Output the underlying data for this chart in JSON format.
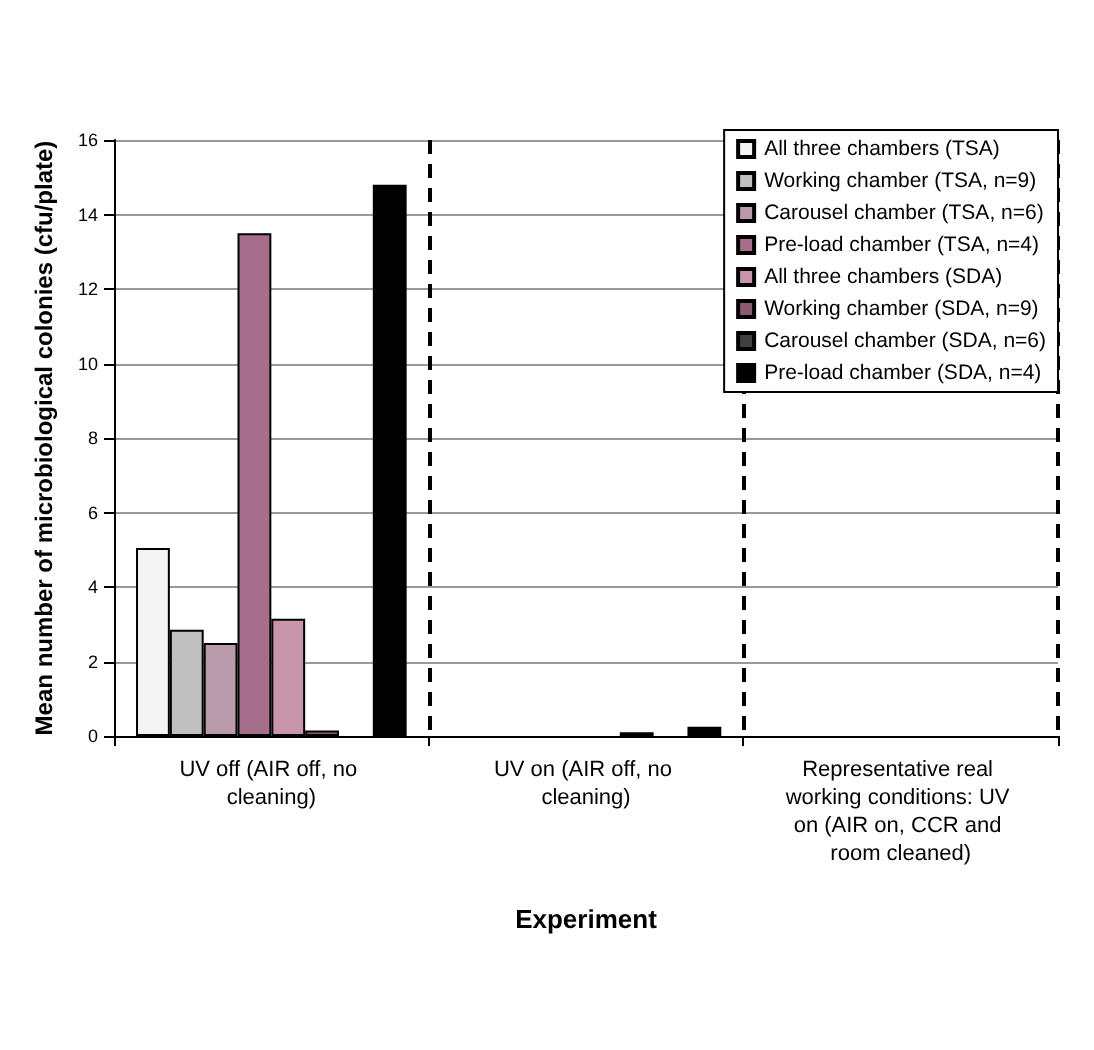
{
  "chart_data": {
    "type": "bar",
    "xlabel": "Experiment",
    "ylabel": "Mean number of microbiological colonies (cfu/plate)",
    "categories": [
      "UV off (AIR off, no cleaning)",
      "UV on (AIR off, no cleaning)",
      "Representative real working conditions: UV on (AIR on, CCR and room cleaned)"
    ],
    "series": [
      {
        "name": "All three chambers (TSA)",
        "color": "#f4f4f4",
        "values": [
          5.05,
          null,
          null
        ]
      },
      {
        "name": "Working chamber (TSA, n=9)",
        "color": "#c0c0c0",
        "values": [
          2.85,
          null,
          null
        ]
      },
      {
        "name": "Carousel chamber (TSA, n=6)",
        "color": "#b89aab",
        "values": [
          2.5,
          null,
          null
        ]
      },
      {
        "name": "Pre-load chamber (TSA, n=4)",
        "color": "#a66e8a",
        "values": [
          13.5,
          null,
          null
        ]
      },
      {
        "name": "All three chambers (SDA)",
        "color": "#c895ad",
        "values": [
          3.15,
          null,
          null
        ]
      },
      {
        "name": "Working chamber (SDA, n=9)",
        "color": "#8a5a70",
        "values": [
          0.15,
          0.1,
          null
        ]
      },
      {
        "name": "Carousel chamber (SDA, n=6)",
        "color": "#404040",
        "values": [
          null,
          null,
          null
        ]
      },
      {
        "name": "Pre-load chamber (SDA, n=4)",
        "color": "#000000",
        "values": [
          14.8,
          0.25,
          null
        ]
      }
    ],
    "ylim": [
      0,
      16
    ],
    "yticks": [
      0,
      2,
      4,
      6,
      8,
      10,
      12,
      14,
      16
    ],
    "grid": "y",
    "legend": "top right"
  }
}
